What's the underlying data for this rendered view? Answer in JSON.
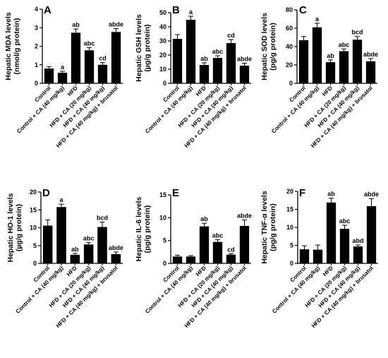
{
  "chart_data": [
    {
      "type": "bar",
      "panel": "A",
      "ylabel": "Hepatic MDA levels\n(nmol/g protein)",
      "ylim": [
        0,
        4
      ],
      "yticks": [
        0,
        1,
        2,
        3,
        4
      ],
      "categories": [
        "Control",
        "Control + CA (40 mg/kg)",
        "HFD",
        "HFD + CA (20 mg/kg)",
        "HFD + CA (40 mg/kg)",
        "HFD + CA (40 mg/kg) + brusatol"
      ],
      "values": [
        0.8,
        0.57,
        2.73,
        1.78,
        1.0,
        2.77
      ],
      "errors": [
        0.1,
        0.08,
        0.2,
        0.15,
        0.12,
        0.18
      ],
      "labels": [
        "",
        "a",
        "ab",
        "abc",
        "cd",
        "abde"
      ]
    },
    {
      "type": "bar",
      "panel": "B",
      "ylabel": "Hepatic GSH levels\n(µg/g protein)",
      "ylim": [
        0,
        50
      ],
      "yticks": [
        0,
        10,
        20,
        30,
        40,
        50
      ],
      "categories": [
        "Control",
        "Control + CA (40 mg/kg)",
        "HFD",
        "HFD + CA (20 mg/kg)",
        "HFD + CA (40 mg/kg)",
        "HFD + CA (40 mg/kg) + brusatol"
      ],
      "values": [
        31.5,
        45,
        13,
        18,
        28.5,
        12.5
      ],
      "errors": [
        3,
        2.5,
        1.5,
        1.5,
        2.5,
        1.8
      ],
      "labels": [
        "",
        "a",
        "ab",
        "abc",
        "cd",
        "abde"
      ]
    },
    {
      "type": "bar",
      "panel": "C",
      "ylabel": "Hepatic SOD levels\n(pg/g protein)",
      "ylim": [
        0,
        80
      ],
      "yticks": [
        0,
        20,
        40,
        60,
        80
      ],
      "categories": [
        "Control",
        "Control + CA (40 mg/kg)",
        "HFD",
        "HFD + CA (20 mg/kg)",
        "HFD + CA (40 mg/kg)",
        "HFD + CA (40 mg/kg) + brusatol"
      ],
      "values": [
        47,
        61,
        23,
        35,
        47.5,
        24
      ],
      "errors": [
        4,
        4.5,
        2.5,
        2.5,
        3.5,
        3
      ],
      "labels": [
        "",
        "a",
        "ab",
        "abc",
        "bcd",
        "abde"
      ]
    },
    {
      "type": "bar",
      "panel": "D",
      "ylabel": "Hepatic HO-1 levels\n(µg/g protein)",
      "ylim": [
        0,
        20
      ],
      "yticks": [
        0,
        5,
        10,
        15,
        20
      ],
      "categories": [
        "Control",
        "Control + CA (40 mg/kg)",
        "HFD",
        "HFD + CA (20 mg/kg)",
        "HFD + CA (40 mg/kg)",
        "HFD + CA (40 mg/kg) + brusatol"
      ],
      "values": [
        10.6,
        15.8,
        2.4,
        5.3,
        10.2,
        2.6
      ],
      "errors": [
        1.6,
        0.8,
        0.4,
        0.5,
        1.4,
        0.6
      ],
      "labels": [
        "",
        "a",
        "ab",
        "abc",
        "bcd",
        "abde"
      ]
    },
    {
      "type": "bar",
      "panel": "E",
      "ylabel": "Hepatic IL-6 levels\n(pg/g protein)",
      "ylim": [
        0,
        15
      ],
      "yticks": [
        0,
        5,
        10,
        15
      ],
      "categories": [
        "Control",
        "Control + CA (40 mg/kg)",
        "HFD",
        "HFD + CA (20 mg/kg)",
        "HFD + CA (40 mg/kg)",
        "HFD + CA (40 mg/kg) + brusatol"
      ],
      "values": [
        1.5,
        1.5,
        8.1,
        4.7,
        1.9,
        8.2
      ],
      "errors": [
        0.3,
        0.2,
        0.7,
        0.5,
        0.2,
        1.3
      ],
      "labels": [
        "",
        "",
        "ab",
        "abc",
        "cd",
        "abde"
      ]
    },
    {
      "type": "bar",
      "panel": "F",
      "ylabel": "Hepatic TNF-α levels\n(pg/g protein)",
      "ylim": [
        0,
        20
      ],
      "yticks": [
        0,
        5,
        10,
        15,
        20
      ],
      "categories": [
        "Control",
        "Control + CA (40 mg/kg)",
        "HFD",
        "HFD + CA (20 mg/kg)",
        "HFD + CA (40 mg/kg)",
        "HFD + CA (40 mg/kg) + brusatol"
      ],
      "values": [
        3.9,
        3.8,
        16.9,
        9.6,
        4.7,
        15.9
      ],
      "errors": [
        1.0,
        1.3,
        1.2,
        1.0,
        0.4,
        2.1
      ],
      "labels": [
        "",
        "",
        "ab",
        "abc",
        "abd",
        "abde"
      ]
    }
  ]
}
